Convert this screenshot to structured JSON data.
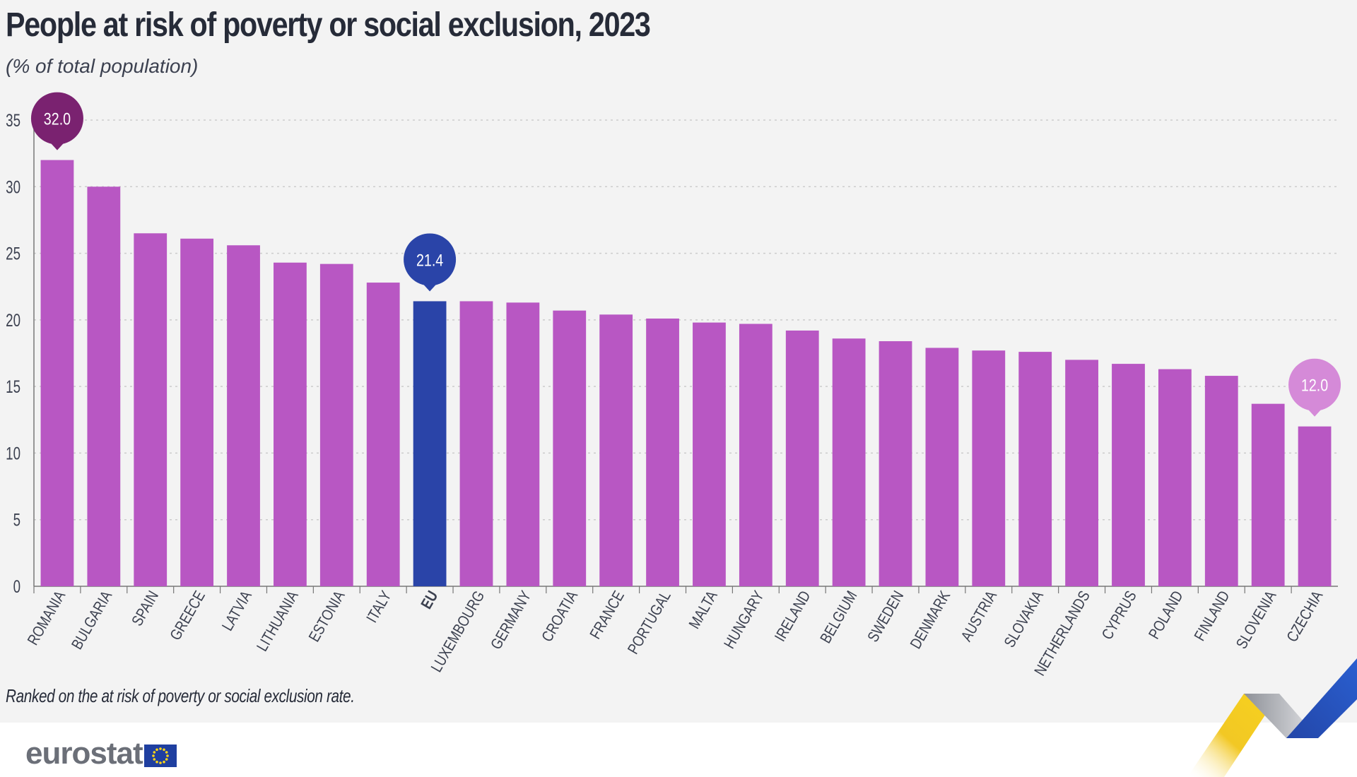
{
  "chart_data": {
    "type": "bar",
    "title": "People at risk of poverty or social exclusion, 2023",
    "subtitle": "(% of total population)",
    "note": "Ranked on the at risk of poverty or social exclusion rate.",
    "xlabel": "",
    "ylabel": "",
    "ylim": [
      0,
      35
    ],
    "yticks": [
      0,
      5,
      10,
      15,
      20,
      25,
      30,
      35
    ],
    "grid": true,
    "legend": "none",
    "categories": [
      "ROMANIA",
      "BULGARIA",
      "SPAIN",
      "GREECE",
      "LATVIA",
      "LITHUANIA",
      "ESTONIA",
      "ITALY",
      "EU",
      "LUXEMBOURG",
      "GERMANY",
      "CROATIA",
      "FRANCE",
      "PORTUGAL",
      "MALTA",
      "HUNGARY",
      "IRELAND",
      "BELGIUM",
      "SWEDEN",
      "DENMARK",
      "AUSTRIA",
      "SLOVAKIA",
      "NETHERLANDS",
      "CYPRUS",
      "POLAND",
      "FINLAND",
      "SLOVENIA",
      "CZECHIA"
    ],
    "values": [
      32.0,
      30.0,
      26.5,
      26.1,
      25.6,
      24.3,
      24.2,
      22.8,
      21.4,
      21.4,
      21.3,
      20.7,
      20.4,
      20.1,
      19.8,
      19.7,
      19.2,
      18.6,
      18.4,
      17.9,
      17.7,
      17.6,
      17.0,
      16.7,
      16.3,
      15.8,
      13.7,
      12.0
    ],
    "highlights": [
      {
        "category": "ROMANIA",
        "label": "32.0",
        "color": "#7a2270"
      },
      {
        "category": "EU",
        "label": "21.4",
        "color": "#2a44a8"
      },
      {
        "category": "CZECHIA",
        "label": "12.0",
        "color": "#d58ad8"
      }
    ],
    "colors": {
      "bar": "#b857c3",
      "eu_bar": "#2a44a8",
      "grid": "#cccccc",
      "axis": "#777777"
    }
  },
  "footer": {
    "logo_text": "eurostat",
    "logo_icon": "eu-flag-icon"
  }
}
